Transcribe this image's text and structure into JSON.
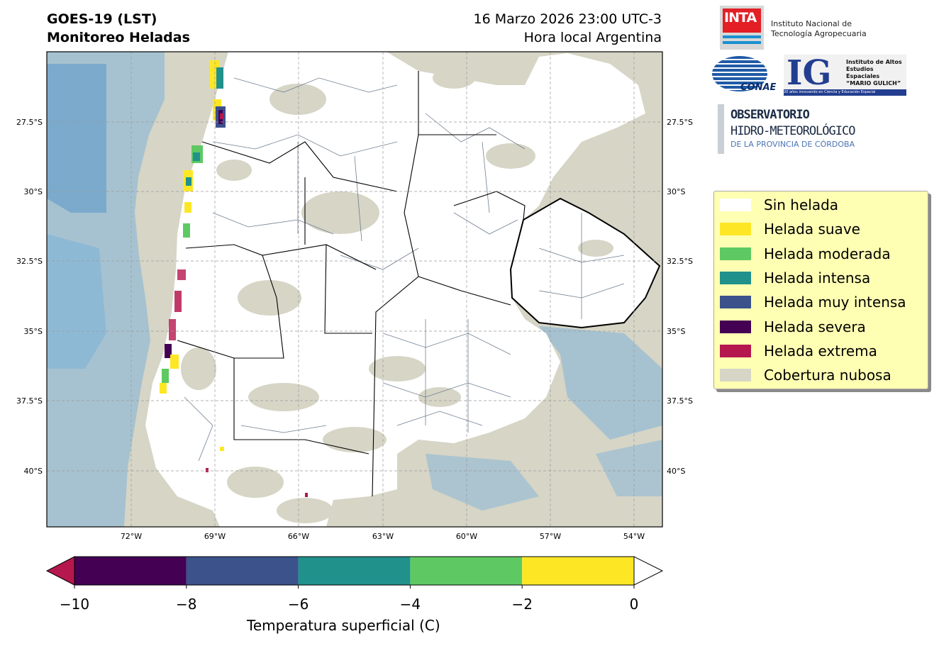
{
  "header": {
    "title_line1": "GOES-19 (LST)",
    "title_line2": "Monitoreo Heladas",
    "date_line": "16 Marzo 2026 23:00 UTC-3",
    "time_zone_line": "Hora local Argentina"
  },
  "map": {
    "lat_ticks": [
      "27.5°S",
      "30°S",
      "32.5°S",
      "35°S",
      "37.5°S",
      "40°S"
    ],
    "lon_ticks": [
      "72°W",
      "69°W",
      "66°W",
      "63°W",
      "60°W",
      "57°W",
      "54°W"
    ],
    "colors": {
      "cloud": "#d6d5c6",
      "water": "#7fb3d9",
      "water_deep": "#6a9fcb",
      "no_frost": "#ffffff",
      "border": "#000000",
      "departments": "#6e7e91",
      "grid": "#9a9a9a"
    }
  },
  "legend": {
    "items": [
      {
        "label": "Sin helada",
        "color": "#ffffff"
      },
      {
        "label": "Helada suave",
        "color": "#fde725"
      },
      {
        "label": "Helada moderada",
        "color": "#5ec962"
      },
      {
        "label": "Helada intensa",
        "color": "#21918c"
      },
      {
        "label": "Helada muy intensa",
        "color": "#3b528b"
      },
      {
        "label": "Helada severa",
        "color": "#440154"
      },
      {
        "label": "Helada extrema",
        "color": "#b5174f"
      },
      {
        "label": "Cobertura nubosa",
        "color": "#d6d5c6"
      }
    ]
  },
  "colorbar": {
    "bins": [
      {
        "from": -10,
        "to": -8,
        "color": "#440154"
      },
      {
        "from": -8,
        "to": -6,
        "color": "#3b528b"
      },
      {
        "from": -6,
        "to": -4,
        "color": "#21918c"
      },
      {
        "from": -4,
        "to": -2,
        "color": "#5ec962"
      },
      {
        "from": -2,
        "to": 0,
        "color": "#fde725"
      }
    ],
    "under_color": "#b5174f",
    "over_color": "#ffffff",
    "ticks": [
      "−10",
      "−8",
      "−6",
      "−4",
      "−2",
      "0"
    ],
    "label": "Temperatura superficial (C)"
  },
  "logos": {
    "inta_word": "INTA",
    "inta_name_1": "Instituto Nacional de",
    "inta_name_2": "Tecnología Agropecuaria",
    "conae_word": "CONAE",
    "ig_letters": "IG",
    "ig_name_1": "Instituto de Altos",
    "ig_name_2": "Estudios Espaciales",
    "ig_name_3": "“MARIO GULICH”",
    "ig_strip": "20 años innovando en Ciencia y Educación Espacial",
    "obs_1": "OBSERVATORIO",
    "obs_2": "HIDRO-METEOROLÓGICO",
    "obs_3": "DE LA PROVINCIA DE CÓRDOBA"
  }
}
